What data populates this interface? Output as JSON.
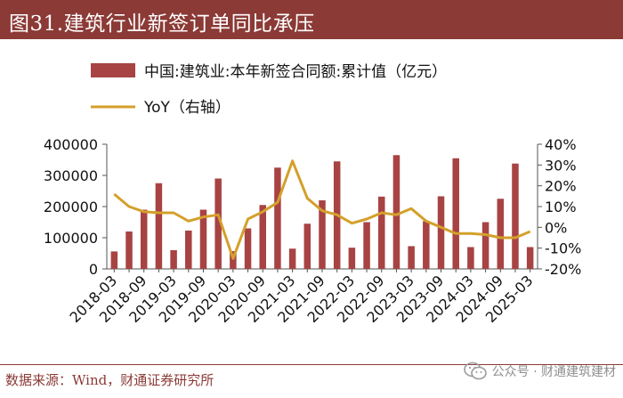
{
  "title": "图31.建筑行业新签订单同比承压",
  "source": "数据来源：Wind，财通证券研究所",
  "watermark": "公众号 · 财通建筑建材",
  "colors": {
    "title_bg": "#8b3a36",
    "bar": "#a84343",
    "line": "#d4a02b",
    "axis": "#555555"
  },
  "chart_data": {
    "type": "bar",
    "legend": [
      {
        "key": "bar",
        "label": "中国:建筑业:本年新签合同额:累计值（亿元）"
      },
      {
        "key": "line",
        "label": "YoY（右轴）"
      }
    ],
    "categories": [
      "2018-03",
      "2018-06",
      "2018-09",
      "2018-12",
      "2019-03",
      "2019-06",
      "2019-09",
      "2019-12",
      "2020-03",
      "2020-06",
      "2020-09",
      "2020-12",
      "2021-03",
      "2021-06",
      "2021-09",
      "2021-12",
      "2022-03",
      "2022-06",
      "2022-09",
      "2022-12",
      "2023-03",
      "2023-06",
      "2023-09",
      "2023-12",
      "2024-03",
      "2024-06",
      "2024-09",
      "2024-12",
      "2025-03"
    ],
    "x_tick_labels": [
      "2018-03",
      "2018-09",
      "2019-03",
      "2019-09",
      "2020-03",
      "2020-09",
      "2021-03",
      "2021-09",
      "2022-03",
      "2022-09",
      "2023-03",
      "2023-09",
      "2024-03",
      "2024-09",
      "2025-03"
    ],
    "series": [
      {
        "name": "中国:建筑业:本年新签合同额:累计值（亿元）",
        "type": "bar",
        "axis": "left",
        "values": [
          56000,
          120000,
          190000,
          275000,
          60000,
          123000,
          190000,
          290000,
          57000,
          130000,
          205000,
          325000,
          65000,
          145000,
          220000,
          345000,
          68000,
          150000,
          232000,
          365000,
          73000,
          153000,
          233000,
          355000,
          70000,
          150000,
          225000,
          338000,
          70000
        ]
      },
      {
        "name": "YoY（右轴）",
        "type": "line",
        "axis": "right",
        "values": [
          16,
          10,
          7.5,
          7,
          7,
          3,
          5,
          6,
          -15,
          4,
          7.5,
          12,
          32,
          14,
          8,
          6,
          2,
          4,
          7,
          6,
          9,
          3,
          0,
          -3,
          -3,
          -3.5,
          -5,
          -5,
          -2
        ]
      }
    ],
    "y_left": {
      "min": 0,
      "max": 400000,
      "ticks": [
        "0",
        "100000",
        "200000",
        "300000",
        "400000"
      ]
    },
    "y_right": {
      "min": -20,
      "max": 40,
      "ticks": [
        "-20%",
        "-10%",
        "0%",
        "10%",
        "20%",
        "30%",
        "40%"
      ]
    }
  }
}
